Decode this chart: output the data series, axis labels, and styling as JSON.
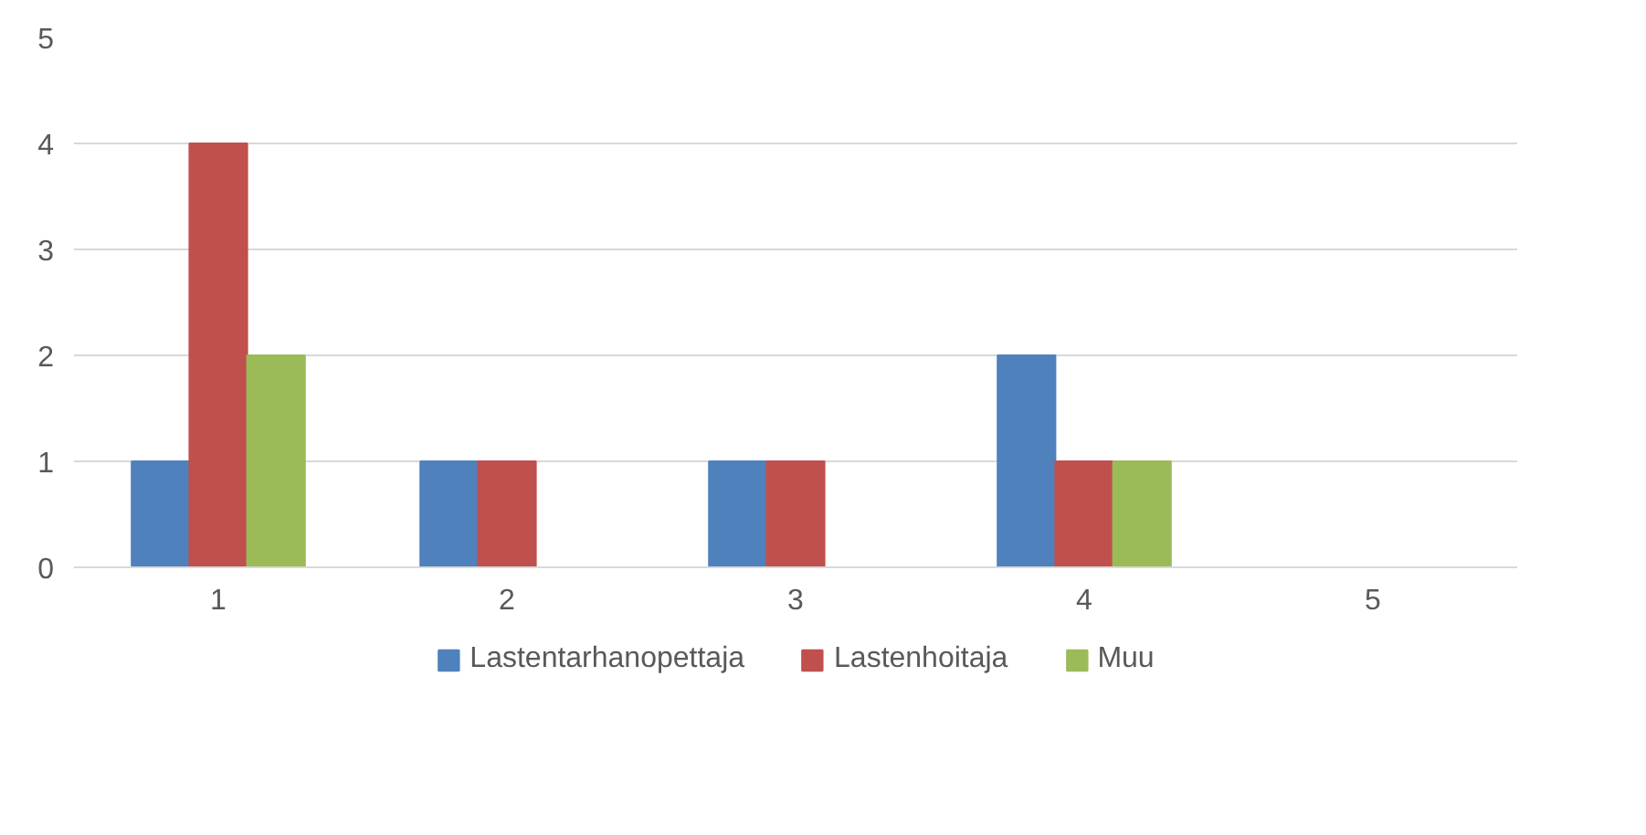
{
  "chart_data": {
    "type": "bar",
    "categories": [
      "1",
      "2",
      "3",
      "4",
      "5"
    ],
    "series": [
      {
        "name": "Lastentarhanopettaja",
        "color": "#4f81bd",
        "values": [
          1,
          1,
          1,
          2,
          0
        ]
      },
      {
        "name": "Lastenhoitaja",
        "color": "#c0504d",
        "values": [
          4,
          1,
          1,
          1,
          0
        ]
      },
      {
        "name": "Muu",
        "color": "#9bbb59",
        "values": [
          2,
          0,
          0,
          1,
          0
        ]
      }
    ],
    "ylim": [
      0,
      5
    ],
    "yticks": [
      0,
      1,
      2,
      3,
      4,
      5
    ],
    "grid": "y",
    "legend": "bottom"
  }
}
